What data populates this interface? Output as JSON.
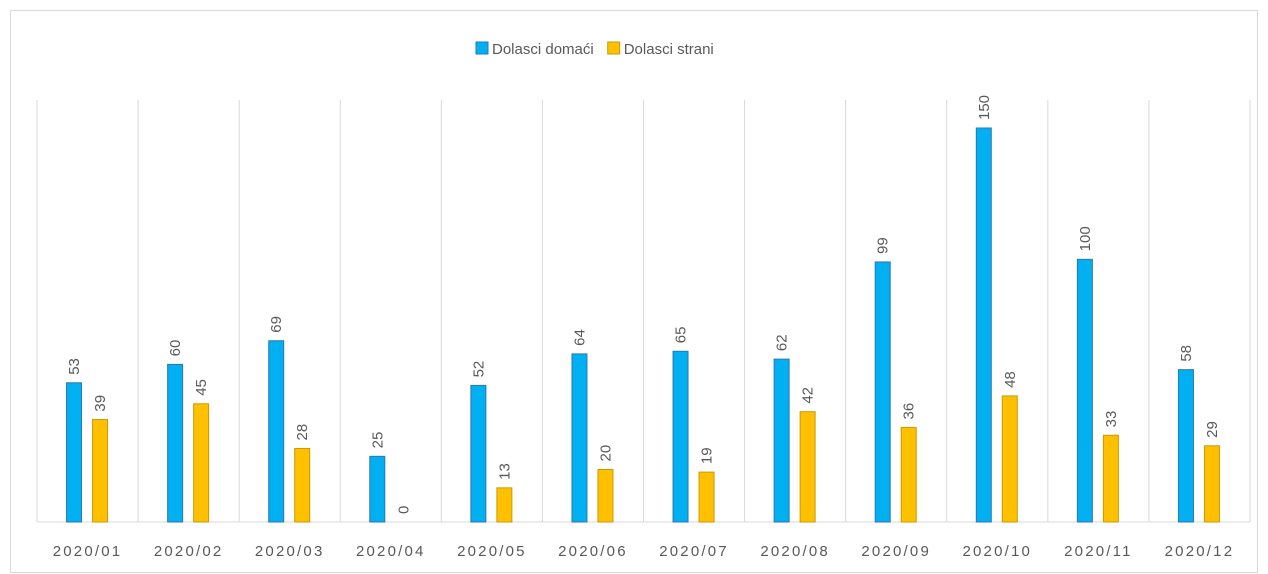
{
  "chart_data": {
    "type": "bar",
    "categories": [
      "2020/01",
      "2020/02",
      "2020/03",
      "2020/04",
      "2020/05",
      "2020/06",
      "2020/07",
      "2020/08",
      "2020/09",
      "2020/10",
      "2020/11",
      "2020/12"
    ],
    "series": [
      {
        "name": "Dolasci domaći",
        "color": "#00b0f0",
        "values": [
          53,
          60,
          69,
          25,
          52,
          64,
          65,
          62,
          99,
          150,
          100,
          58
        ]
      },
      {
        "name": "Dolasci strani",
        "color": "#ffc000",
        "values": [
          39,
          45,
          28,
          0,
          13,
          20,
          19,
          42,
          36,
          48,
          33,
          29
        ]
      }
    ],
    "legend": "top"
  }
}
